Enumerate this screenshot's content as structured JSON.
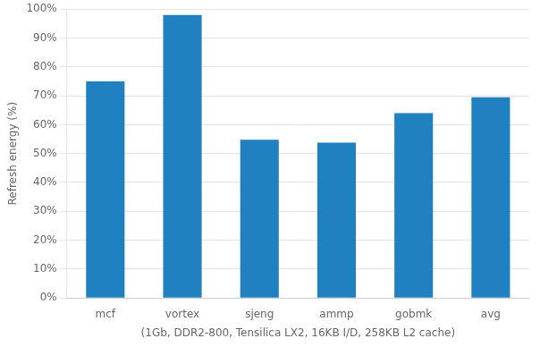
{
  "chart_data": {
    "type": "bar",
    "categories": [
      "mcf",
      "vortex",
      "sjeng",
      "ammp",
      "gobmk",
      "avg"
    ],
    "values": [
      0.75,
      0.98,
      0.548,
      0.538,
      0.64,
      0.695
    ],
    "color": "#2080c0",
    "ylabel": "Refresh energy (%)",
    "xlabel": "(1Gb, DDR2-800, Tensilica LX2, 16KB I/D, 258KB L2 cache)",
    "ylim": [
      0,
      1.0
    ],
    "yticks": [
      {
        "value": 0.0,
        "label": "0%"
      },
      {
        "value": 0.1,
        "label": "10%"
      },
      {
        "value": 0.2,
        "label": "20%"
      },
      {
        "value": 0.3,
        "label": "30%"
      },
      {
        "value": 0.4,
        "label": "40%"
      },
      {
        "value": 0.5,
        "label": "50%"
      },
      {
        "value": 0.6,
        "label": "60%"
      },
      {
        "value": 0.7,
        "label": "70%"
      },
      {
        "value": 0.8,
        "label": "80%"
      },
      {
        "value": 0.9,
        "label": "90%"
      },
      {
        "value": 1.0,
        "label": "100%"
      }
    ],
    "grid": true
  }
}
